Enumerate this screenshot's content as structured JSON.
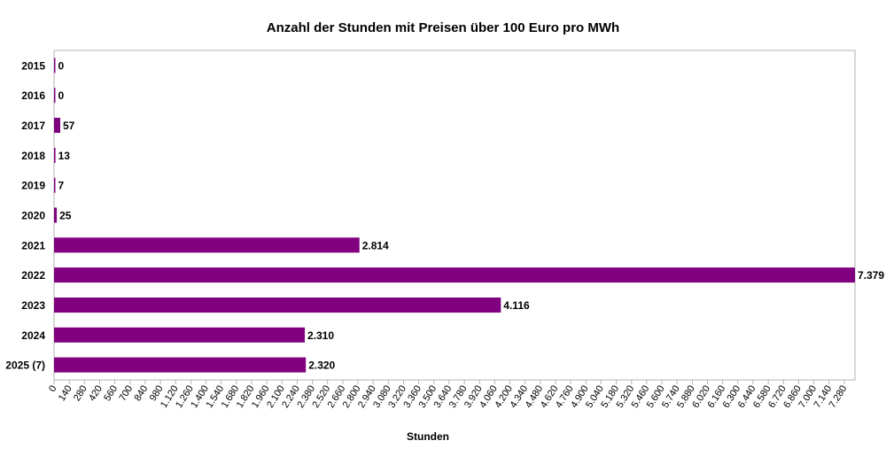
{
  "chart_data": {
    "type": "bar",
    "orientation": "horizontal",
    "title": "Anzahl der Stunden mit Preisen über 100 Euro pro MWh",
    "xlabel": "Stunden",
    "ylabel": "",
    "categories": [
      "2015",
      "2016",
      "2017",
      "2018",
      "2019",
      "2020",
      "2021",
      "2022",
      "2023",
      "2024",
      "2025 (7)"
    ],
    "values": [
      0,
      0,
      57,
      13,
      7,
      25,
      2814,
      7379,
      4116,
      2310,
      2320
    ],
    "value_labels": [
      "0",
      "0",
      "57",
      "13",
      "7",
      "25",
      "2.814",
      "7.379",
      "4.116",
      "2.310",
      "2.320"
    ],
    "xlim": [
      0,
      7379
    ],
    "xticks": [
      0,
      140,
      280,
      420,
      560,
      700,
      840,
      980,
      1120,
      1260,
      1400,
      1540,
      1680,
      1820,
      1960,
      2100,
      2240,
      2380,
      2520,
      2660,
      2800,
      2940,
      3080,
      3220,
      3360,
      3500,
      3640,
      3780,
      3920,
      4060,
      4200,
      4340,
      4480,
      4620,
      4760,
      4900,
      5040,
      5180,
      5320,
      5460,
      5600,
      5740,
      5880,
      6020,
      6160,
      6300,
      6440,
      6580,
      6720,
      6860,
      7000,
      7140,
      7280
    ],
    "xtick_labels": [
      "0",
      "140",
      "280",
      "420",
      "560",
      "700",
      "840",
      "980",
      "1.120",
      "1.260",
      "1.400",
      "1.540",
      "1.680",
      "1.820",
      "1.960",
      "2.100",
      "2.240",
      "2.380",
      "2.520",
      "2.660",
      "2.800",
      "2.940",
      "3.080",
      "3.220",
      "3.360",
      "3.500",
      "3.640",
      "3.780",
      "3.920",
      "4.060",
      "4.200",
      "4.340",
      "4.480",
      "4.620",
      "4.760",
      "4.900",
      "5.040",
      "5.180",
      "5.320",
      "5.460",
      "5.600",
      "5.740",
      "5.880",
      "6.020",
      "6.160",
      "6.300",
      "6.440",
      "6.580",
      "6.720",
      "6.860",
      "7.000",
      "7.140",
      "7.280"
    ],
    "bar_color": "#800080",
    "grid": false,
    "legend": "none"
  }
}
